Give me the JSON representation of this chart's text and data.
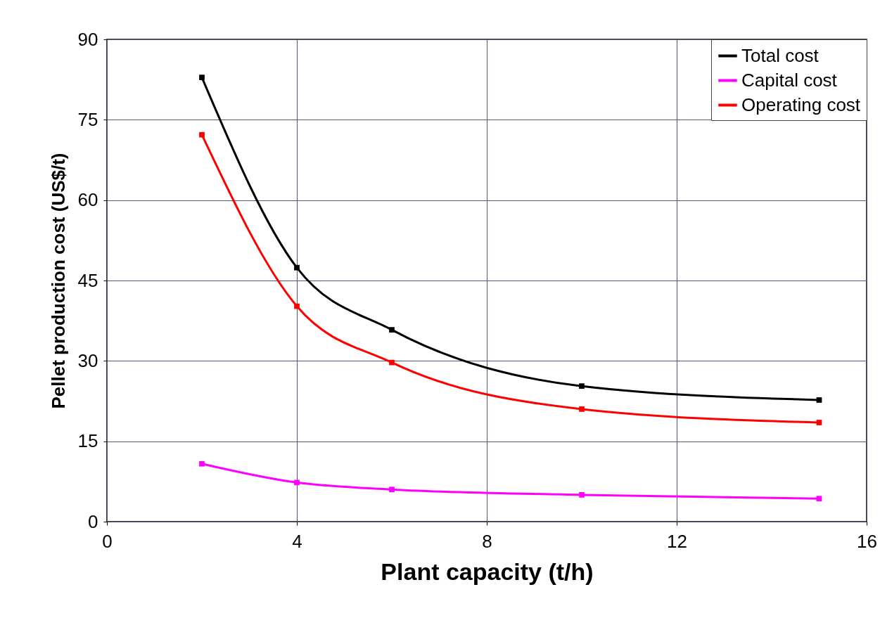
{
  "chart_data": {
    "type": "line",
    "xlabel": "Plant capacity (t/h)",
    "ylabel": "Pellet production cost (US$/t)",
    "x": [
      2,
      4,
      6,
      10,
      15
    ],
    "series": [
      {
        "name": "Total cost",
        "color": "#000000",
        "values": [
          82.9,
          47.4,
          35.8,
          25.3,
          22.7
        ]
      },
      {
        "name": "Capital cost",
        "color": "#ff00ff",
        "values": [
          10.8,
          7.3,
          6.0,
          5.0,
          4.3
        ]
      },
      {
        "name": "Operating cost",
        "color": "#ff0000",
        "values": [
          72.2,
          40.2,
          29.7,
          21.0,
          18.5
        ]
      }
    ],
    "xlim": [
      0,
      16
    ],
    "xticks": [
      0,
      4,
      8,
      12,
      16
    ],
    "ylim": [
      0,
      90
    ],
    "yticks": [
      0,
      15,
      30,
      45,
      60,
      75,
      90
    ],
    "grid": true,
    "legend": "top right",
    "marker": "square",
    "line_style": "solid"
  }
}
